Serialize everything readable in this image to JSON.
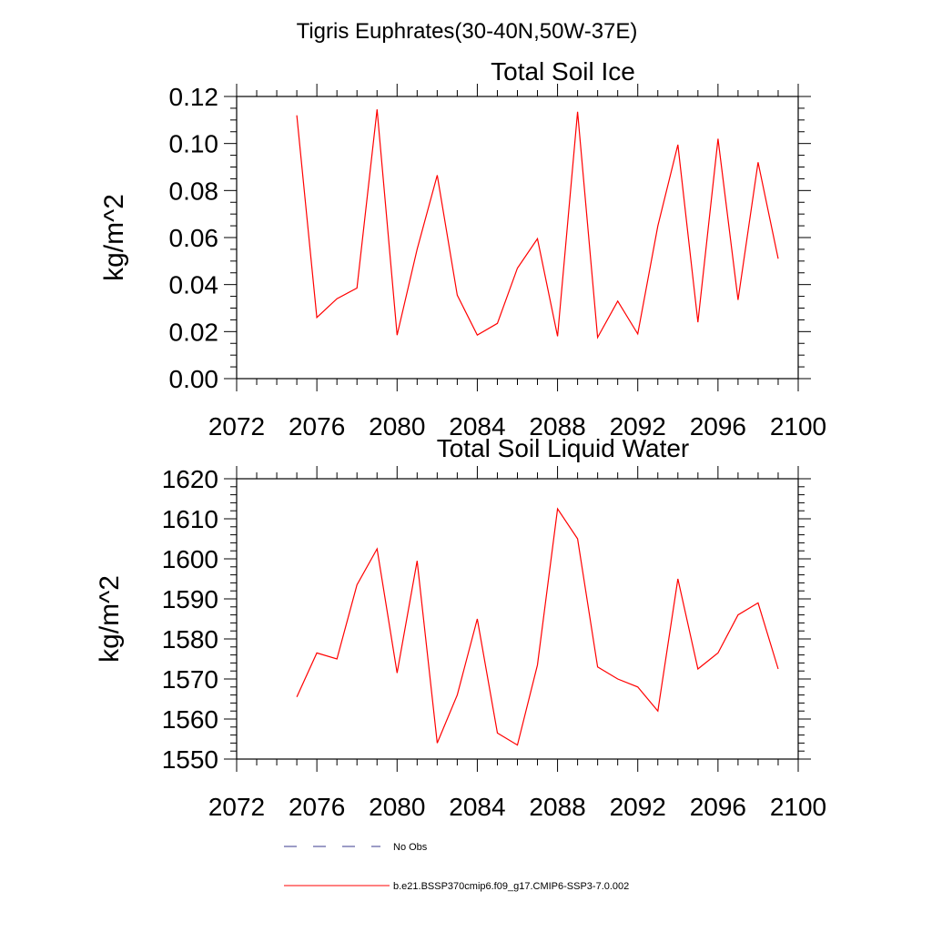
{
  "figure": {
    "title": "Tigris Euphrates(30-40N,50W-37E)"
  },
  "colors": {
    "model_line": "#ff0000",
    "obs_line": "#3a3a8c",
    "axis": "#000000"
  },
  "chart_data": [
    {
      "type": "line",
      "title": "Total Soil Ice",
      "xlabel": "",
      "ylabel": "kg/m^2",
      "xlim": [
        2072,
        2100
      ],
      "ylim": [
        0,
        0.12
      ],
      "xticks": [
        "2072",
        "2076",
        "2080",
        "2084",
        "2088",
        "2092",
        "2096",
        "2100"
      ],
      "yticks": [
        "0.00",
        "0.02",
        "0.04",
        "0.06",
        "0.08",
        "0.10",
        "0.12"
      ],
      "grid": false,
      "series": [
        {
          "name": "b.e21.BSSP370cmip6.f09_g17.CMIP6-SSP3-7.0.002",
          "x": [
            2075,
            2076,
            2077,
            2078,
            2079,
            2080,
            2081,
            2082,
            2083,
            2084,
            2085,
            2086,
            2087,
            2088,
            2089,
            2090,
            2091,
            2092,
            2093,
            2094,
            2095,
            2096,
            2097,
            2098,
            2099
          ],
          "values": [
            0.112,
            0.026,
            0.034,
            0.0385,
            0.1145,
            0.0185,
            0.055,
            0.0865,
            0.0355,
            0.0185,
            0.0235,
            0.047,
            0.0595,
            0.018,
            0.1135,
            0.0175,
            0.033,
            0.019,
            0.065,
            0.0995,
            0.024,
            0.102,
            0.0335,
            0.092,
            0.051
          ]
        }
      ]
    },
    {
      "type": "line",
      "title": "Total Soil Liquid Water",
      "xlabel": "",
      "ylabel": "kg/m^2",
      "xlim": [
        2072,
        2100
      ],
      "ylim": [
        1550,
        1620
      ],
      "xticks": [
        "2072",
        "2076",
        "2080",
        "2084",
        "2088",
        "2092",
        "2096",
        "2100"
      ],
      "yticks": [
        "1550",
        "1560",
        "1570",
        "1580",
        "1590",
        "1600",
        "1610",
        "1620"
      ],
      "grid": false,
      "series": [
        {
          "name": "b.e21.BSSP370cmip6.f09_g17.CMIP6-SSP3-7.0.002",
          "x": [
            2075,
            2076,
            2077,
            2078,
            2079,
            2080,
            2081,
            2082,
            2083,
            2084,
            2085,
            2086,
            2087,
            2088,
            2089,
            2090,
            2091,
            2092,
            2093,
            2094,
            2095,
            2096,
            2097,
            2098,
            2099
          ],
          "values": [
            1565.5,
            1576.5,
            1575.0,
            1593.5,
            1602.5,
            1571.5,
            1599.5,
            1554.0,
            1566.0,
            1585.0,
            1556.5,
            1553.5,
            1573.5,
            1612.5,
            1605.0,
            1573.0,
            1570.0,
            1568.0,
            1562.0,
            1595.0,
            1572.5,
            1576.5,
            1586.0,
            1589.0,
            1572.5
          ]
        }
      ]
    }
  ],
  "legend": {
    "position": "bottom",
    "items": [
      {
        "label": "No Obs",
        "style": "dashed"
      },
      {
        "label": "b.e21.BSSP370cmip6.f09_g17.CMIP6-SSP3-7.0.002",
        "style": "solid"
      }
    ]
  }
}
